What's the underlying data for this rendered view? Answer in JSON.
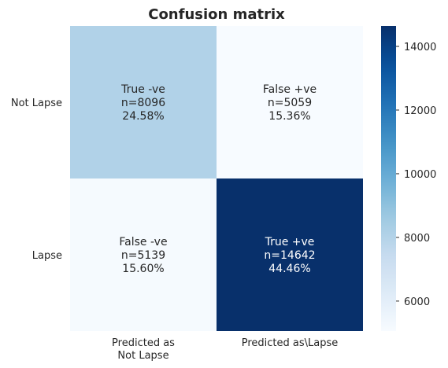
{
  "chart_data": {
    "type": "heatmap",
    "title": "Confusion matrix",
    "row_labels": [
      "Not Lapse",
      "Lapse"
    ],
    "col_labels": [
      [
        "Predicted as",
        "Not Lapse"
      ],
      [
        "Predicted as\\Lapse"
      ]
    ],
    "values": [
      [
        8096,
        5059
      ],
      [
        5139,
        14642
      ]
    ],
    "cells": [
      [
        [
          "True -ve",
          "n=8096",
          "24.58%"
        ],
        [
          "False +ve",
          "n=5059",
          "15.36%"
        ]
      ],
      [
        [
          "False -ve",
          "n=5139",
          "15.60%"
        ],
        [
          "True +ve",
          "n=14642",
          "44.46%"
        ]
      ]
    ],
    "colorbar": {
      "colormap": "Blues",
      "vmin": 5059,
      "vmax": 14642,
      "ticks": [
        6000,
        8000,
        10000,
        12000,
        14000
      ],
      "tick_labels": [
        "6000",
        "8000",
        "10000",
        "12000",
        "14000"
      ]
    },
    "grid": false
  }
}
